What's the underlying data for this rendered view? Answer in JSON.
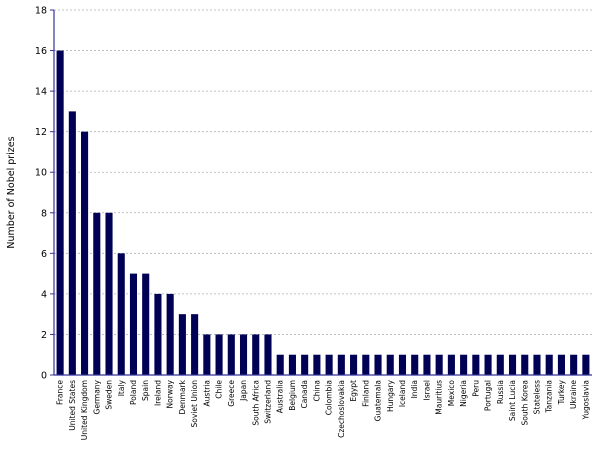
{
  "chart_data": {
    "type": "bar",
    "ylabel": "Number of Nobel prizes",
    "xlabel": "",
    "ylim": [
      0,
      18
    ],
    "yticks": [
      0,
      2,
      4,
      6,
      8,
      10,
      12,
      14,
      16,
      18
    ],
    "grid": "horizontal-dotted",
    "bar_color": "#000055",
    "categories": [
      "France",
      "United States",
      "United Kingdom",
      "Germany",
      "Sweden",
      "Italy",
      "Poland",
      "Spain",
      "Ireland",
      "Norway",
      "Denmark",
      "Soviet Union",
      "Austria",
      "Chile",
      "Greece",
      "Japan",
      "South Africa",
      "Switzerland",
      "Australia",
      "Belgium",
      "Canada",
      "China",
      "Colombia",
      "Czechoslovakia",
      "Egypt",
      "Finland",
      "Guatemala",
      "Hungary",
      "Iceland",
      "India",
      "Israel",
      "Mauritius",
      "Mexico",
      "Nigeria",
      "Peru",
      "Portugal",
      "Russia",
      "Saint Lucia",
      "South Korea",
      "Stateless",
      "Tanzania",
      "Turkey",
      "Ukraine",
      "Yugoslavia"
    ],
    "values": [
      16,
      13,
      12,
      8,
      8,
      6,
      5,
      5,
      4,
      4,
      3,
      3,
      2,
      2,
      2,
      2,
      2,
      2,
      1,
      1,
      1,
      1,
      1,
      1,
      1,
      1,
      1,
      1,
      1,
      1,
      1,
      1,
      1,
      1,
      1,
      1,
      1,
      1,
      1,
      1,
      1,
      1,
      1,
      1
    ]
  }
}
